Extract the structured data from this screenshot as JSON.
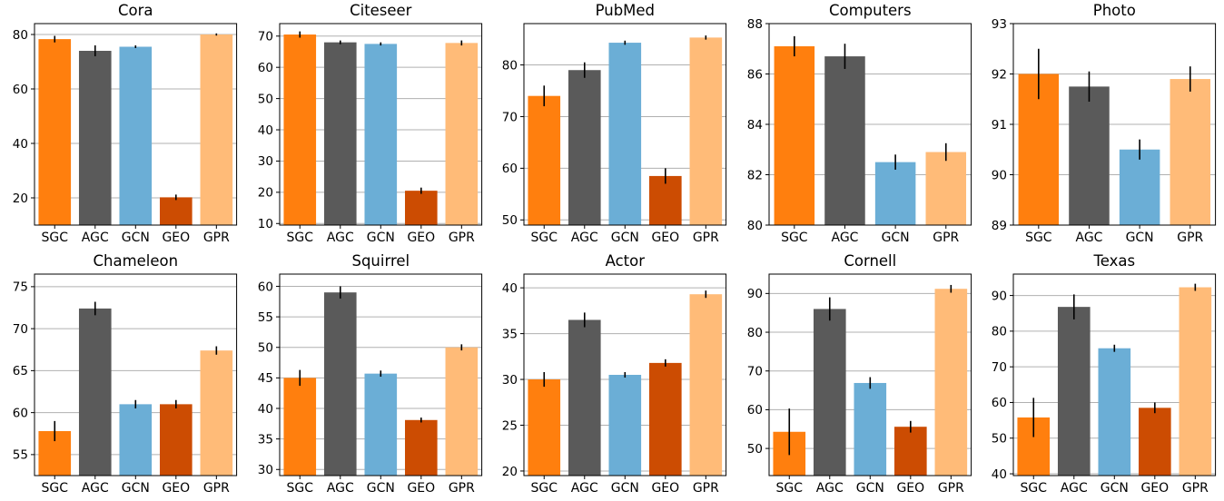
{
  "methods": [
    "SGC",
    "AGC",
    "GCN",
    "GEO",
    "GPR"
  ],
  "colors": {
    "SGC": "#ff7f0e",
    "AGC": "#5a5a5a",
    "GCN": "#6baed6",
    "GEO": "#cc4c02",
    "GPR": "#ffbb78"
  },
  "style": {
    "grid_color": "#b0b0b0",
    "axis_color": "#000000",
    "error_bar_color": "#000000",
    "background": "#ffffff",
    "text_color": "#000000"
  },
  "chart_data": [
    {
      "type": "bar",
      "title": "Cora",
      "categories": [
        "SGC",
        "AGC",
        "GCN",
        "GEO",
        "GPR"
      ],
      "values": [
        78.3,
        74.0,
        75.5,
        20.2,
        80.0
      ],
      "errors": [
        1.2,
        2.0,
        0.5,
        1.0,
        0.4
      ],
      "ylim": [
        10,
        84
      ],
      "yticks": [
        20,
        40,
        60,
        80
      ],
      "grid": true
    },
    {
      "type": "bar",
      "title": "Citeseer",
      "categories": [
        "SGC",
        "AGC",
        "GCN",
        "GEO",
        "GPR"
      ],
      "values": [
        70.5,
        68.0,
        67.5,
        20.5,
        67.8
      ],
      "errors": [
        1.0,
        0.6,
        0.5,
        1.0,
        0.8
      ],
      "ylim": [
        9.5,
        74
      ],
      "yticks": [
        10,
        20,
        30,
        40,
        50,
        60,
        70
      ],
      "grid": true
    },
    {
      "type": "bar",
      "title": "PubMed",
      "categories": [
        "SGC",
        "AGC",
        "GCN",
        "GEO",
        "GPR"
      ],
      "values": [
        74.0,
        79.0,
        84.3,
        58.5,
        85.3
      ],
      "errors": [
        2.0,
        1.5,
        0.4,
        1.5,
        0.4
      ],
      "ylim": [
        49,
        88
      ],
      "yticks": [
        50,
        60,
        70,
        80
      ],
      "grid": true
    },
    {
      "type": "bar",
      "title": "Computers",
      "categories": [
        "SGC",
        "AGC",
        "GCN",
        "GPR"
      ],
      "values": [
        87.1,
        86.7,
        82.5,
        82.9
      ],
      "errors": [
        0.4,
        0.5,
        0.3,
        0.35
      ],
      "ylim": [
        80,
        88
      ],
      "yticks": [
        80,
        82,
        84,
        86,
        88
      ],
      "grid": true
    },
    {
      "type": "bar",
      "title": "Photo",
      "categories": [
        "SGC",
        "AGC",
        "GCN",
        "GPR"
      ],
      "values": [
        92.0,
        91.75,
        90.5,
        91.9
      ],
      "errors": [
        0.5,
        0.3,
        0.2,
        0.25
      ],
      "ylim": [
        89,
        93
      ],
      "yticks": [
        89,
        90,
        91,
        92,
        93
      ],
      "grid": true
    },
    {
      "type": "bar",
      "title": "Chameleon",
      "categories": [
        "SGC",
        "AGC",
        "GCN",
        "GEO",
        "GPR"
      ],
      "values": [
        57.8,
        72.4,
        61.0,
        61.0,
        67.4
      ],
      "errors": [
        1.2,
        0.8,
        0.5,
        0.5,
        0.5
      ],
      "ylim": [
        52.5,
        76.5
      ],
      "yticks": [
        55,
        60,
        65,
        70,
        75
      ],
      "grid": true
    },
    {
      "type": "bar",
      "title": "Squirrel",
      "categories": [
        "SGC",
        "AGC",
        "GCN",
        "GEO",
        "GPR"
      ],
      "values": [
        45.0,
        59.0,
        45.7,
        38.1,
        50.0
      ],
      "errors": [
        1.3,
        1.0,
        0.5,
        0.4,
        0.5
      ],
      "ylim": [
        29,
        62
      ],
      "yticks": [
        30,
        35,
        40,
        45,
        50,
        55,
        60
      ],
      "grid": true
    },
    {
      "type": "bar",
      "title": "Actor",
      "categories": [
        "SGC",
        "AGC",
        "GCN",
        "GEO",
        "GPR"
      ],
      "values": [
        30.0,
        36.5,
        30.5,
        31.8,
        39.3
      ],
      "errors": [
        0.8,
        0.8,
        0.3,
        0.4,
        0.4
      ],
      "ylim": [
        19.5,
        41.5
      ],
      "yticks": [
        20,
        25,
        30,
        35,
        40
      ],
      "grid": true
    },
    {
      "type": "bar",
      "title": "Cornell",
      "categories": [
        "SGC",
        "AGC",
        "GCN",
        "GEO",
        "GPR"
      ],
      "values": [
        54.3,
        86.0,
        66.9,
        55.6,
        91.2
      ],
      "errors": [
        6.0,
        3.0,
        1.5,
        1.5,
        1.0
      ],
      "ylim": [
        43,
        95
      ],
      "yticks": [
        50,
        60,
        70,
        80,
        90
      ],
      "grid": true
    },
    {
      "type": "bar",
      "title": "Texas",
      "categories": [
        "SGC",
        "AGC",
        "GCN",
        "GEO",
        "GPR"
      ],
      "values": [
        55.8,
        86.8,
        75.2,
        58.5,
        92.3
      ],
      "errors": [
        5.5,
        3.5,
        1.0,
        1.5,
        1.0
      ],
      "ylim": [
        39.5,
        96
      ],
      "yticks": [
        40,
        50,
        60,
        70,
        80,
        90
      ],
      "grid": true
    }
  ]
}
